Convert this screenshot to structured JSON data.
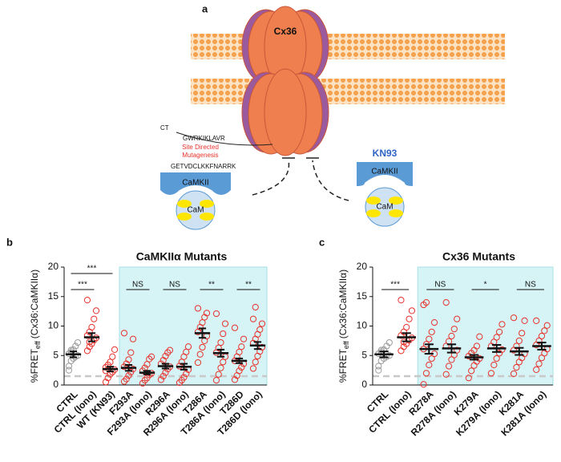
{
  "diagram": {
    "panel": "a",
    "channel": "Cx36",
    "ct": "CT",
    "seq_top": "GWRKIKLAVR",
    "mutagenesis_1": "Site Directed",
    "mutagenesis_2": "Mutagenesis",
    "seq_bottom": "GETVDCLKKFNARRK",
    "kinase_left": "CaMKII",
    "cam_left": "CaM",
    "inhibitor": "KN93",
    "kinase_right": "CaMKII",
    "cam_right": "CaM"
  },
  "chart_data": [
    {
      "type": "strip",
      "panel": "b",
      "title": "CaMKIIα Mutants",
      "ylabel": [
        "%FRET",
        "eff",
        "(Cx36:CaMKIIα)"
      ],
      "categories": [
        "CTRL",
        "CTRL (Iono)",
        "WT (KN93)",
        "F293A",
        "F293A (Iono)",
        "R296A",
        "R296A (Iono)",
        "T286A",
        "T286A (Iono)",
        "T286D",
        "T286D (Iono)"
      ],
      "point_colors": [
        "#9a9a9a",
        "#e8322c",
        "#e8322c",
        "#e8322c",
        "#e8322c",
        "#e8322c",
        "#e8322c",
        "#e8322c",
        "#e8322c",
        "#e8322c",
        "#e8322c"
      ],
      "points": [
        [
          3.2,
          4.1,
          4.5,
          4.8,
          5.0,
          5.3,
          5.6,
          6.0,
          6.6,
          7.2,
          2.5,
          5.9
        ],
        [
          5.8,
          6.5,
          7.0,
          7.6,
          8.0,
          8.4,
          9.0,
          9.8,
          11.2,
          12.6,
          14.4,
          7.3
        ],
        [
          0.5,
          1.2,
          1.8,
          2.2,
          2.6,
          3.0,
          3.4,
          3.9,
          4.8,
          6.0,
          2.4
        ],
        [
          0.6,
          1.0,
          1.6,
          2.2,
          2.7,
          3.1,
          3.6,
          4.3,
          5.5,
          7.8,
          8.8
        ],
        [
          0.3,
          0.8,
          1.2,
          1.7,
          2.0,
          2.4,
          2.9,
          3.5,
          4.4,
          4.8
        ],
        [
          0.9,
          1.5,
          2.1,
          2.7,
          3.1,
          3.6,
          4.2,
          4.9,
          5.5,
          5.9
        ],
        [
          0.4,
          0.8,
          1.3,
          1.9,
          2.6,
          3.2,
          3.9,
          4.8,
          5.6,
          6.5
        ],
        [
          3.8,
          5.2,
          6.4,
          7.5,
          8.3,
          9.0,
          9.8,
          10.6,
          11.5,
          12.2,
          13.0
        ],
        [
          0.8,
          1.8,
          2.9,
          3.9,
          4.8,
          5.5,
          6.3,
          7.2,
          8.7,
          10.4,
          12.1
        ],
        [
          0.9,
          1.6,
          2.4,
          3.0,
          3.6,
          4.1,
          4.8,
          5.6,
          6.5,
          7.8,
          9.7
        ],
        [
          2.8,
          3.9,
          4.9,
          5.7,
          6.4,
          7.1,
          7.8,
          8.6,
          9.4,
          10.4,
          11.2,
          13.2
        ]
      ],
      "means": [
        5.2,
        8.1,
        2.7,
        2.9,
        2.1,
        3.2,
        3.1,
        8.8,
        5.4,
        4.1,
        6.7
      ],
      "errors": [
        0.5,
        0.7,
        0.4,
        0.5,
        0.3,
        0.4,
        0.5,
        0.8,
        0.6,
        0.4,
        0.6
      ],
      "shaded_from": "F293A",
      "reference_line": 1.5,
      "significance": [
        {
          "between": [
            "CTRL",
            "CTRL (Iono)"
          ],
          "label": "***"
        },
        {
          "between": [
            "CTRL",
            "WT (KN93)"
          ],
          "label": "***"
        },
        {
          "between": [
            "F293A",
            "F293A (Iono)"
          ],
          "label": "NS"
        },
        {
          "between": [
            "R296A",
            "R296A (Iono)"
          ],
          "label": "NS"
        },
        {
          "between": [
            "T286A",
            "T286A (Iono)"
          ],
          "label": "**"
        },
        {
          "between": [
            "T286D",
            "T286D (Iono)"
          ],
          "label": "**"
        }
      ],
      "ylim": [
        0,
        20
      ],
      "yticks": [
        0,
        5,
        10,
        15,
        20
      ]
    },
    {
      "type": "strip",
      "panel": "c",
      "title": "Cx36 Mutants",
      "ylabel": [
        "%FRET",
        "eff",
        "(Cx36:CaMKIIα)"
      ],
      "categories": [
        "CTRL",
        "CTRL (Iono)",
        "R278A",
        "R278A (Iono)",
        "K279A",
        "K279A (Iono)",
        "K281A",
        "K281A (Iono)"
      ],
      "point_colors": [
        "#9a9a9a",
        "#e8322c",
        "#e8322c",
        "#e8322c",
        "#e8322c",
        "#e8322c",
        "#e8322c",
        "#e8322c"
      ],
      "points": [
        [
          3.2,
          4.1,
          4.5,
          4.8,
          5.0,
          5.3,
          5.6,
          6.0,
          6.6,
          7.2,
          2.5,
          5.9
        ],
        [
          5.8,
          6.5,
          7.0,
          7.6,
          8.0,
          8.4,
          9.0,
          9.8,
          11.2,
          12.6,
          14.4,
          7.3
        ],
        [
          0.1,
          2.0,
          3.4,
          4.5,
          5.3,
          6.1,
          6.9,
          7.8,
          9.0,
          10.6,
          13.6,
          14.0
        ],
        [
          1.8,
          3.2,
          4.3,
          5.1,
          5.9,
          6.6,
          7.4,
          8.3,
          9.5,
          11.2,
          14.0
        ],
        [
          1.2,
          2.4,
          3.3,
          4.0,
          4.5,
          4.9,
          5.4,
          5.9,
          6.6,
          8.2
        ],
        [
          2.0,
          3.4,
          4.5,
          5.4,
          6.0,
          6.6,
          7.3,
          8.1,
          9.0,
          10.3
        ],
        [
          1.9,
          3.0,
          3.9,
          4.6,
          5.3,
          5.9,
          6.6,
          7.5,
          8.8,
          10.9,
          11.4
        ],
        [
          2.6,
          3.6,
          4.6,
          5.4,
          6.1,
          6.8,
          7.5,
          8.3,
          9.2,
          10.1,
          10.9
        ]
      ],
      "means": [
        5.2,
        8.1,
        6.1,
        6.2,
        4.7,
        6.2,
        5.7,
        6.6
      ],
      "errors": [
        0.5,
        0.7,
        0.8,
        0.7,
        0.4,
        0.6,
        0.6,
        0.6
      ],
      "shaded_from": "R278A",
      "reference_line": 1.5,
      "significance": [
        {
          "between": [
            "CTRL",
            "CTRL (Iono)"
          ],
          "label": "***"
        },
        {
          "between": [
            "R278A",
            "R278A (Iono)"
          ],
          "label": "NS"
        },
        {
          "between": [
            "K279A",
            "K279A (Iono)"
          ],
          "label": "*"
        },
        {
          "between": [
            "K281A",
            "K281A (Iono)"
          ],
          "label": "NS"
        }
      ],
      "ylim": [
        0,
        20
      ],
      "yticks": [
        0,
        5,
        10,
        15,
        20
      ]
    }
  ]
}
